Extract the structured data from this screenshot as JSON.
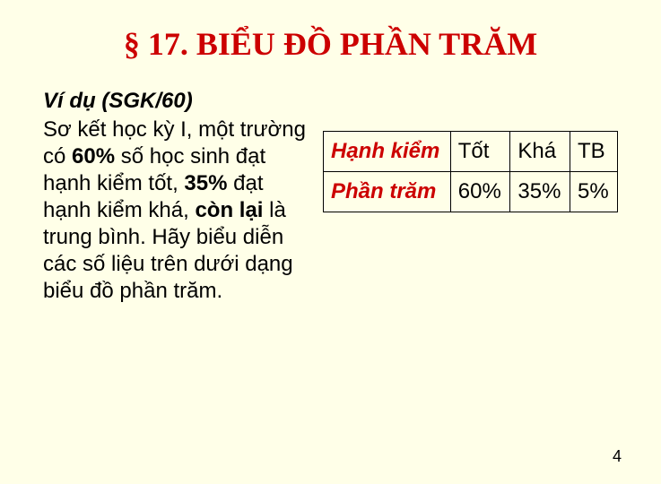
{
  "title": "§ 17. BIỂU ĐỒ PHẦN TRĂM",
  "example_label": "Ví dụ (SGK/60)",
  "body_html": "Sơ kết học kỳ I, một trường có <span class=\"bold\">60%</span> số học sinh đạt hạnh kiểm tốt, <span class=\"bold\">35%</span> đạt hạnh kiểm khá, <span class=\"bold\">còn lại</span> là trung bình. Hãy biểu diễn các số liệu trên dưới dạng biểu đồ phần trăm.",
  "table": {
    "row1_label": "Hạnh kiểm",
    "row2_label": "Phần trăm",
    "columns": [
      "Tốt",
      "Khá",
      "TB"
    ],
    "values": [
      "60%",
      "35%",
      "5%"
    ],
    "border_color": "#000000",
    "label_color": "#cc0000",
    "cell_fontsize": 24
  },
  "page_number": "4",
  "colors": {
    "background": "#ffffe8",
    "title": "#cc0000",
    "text": "#000000"
  }
}
